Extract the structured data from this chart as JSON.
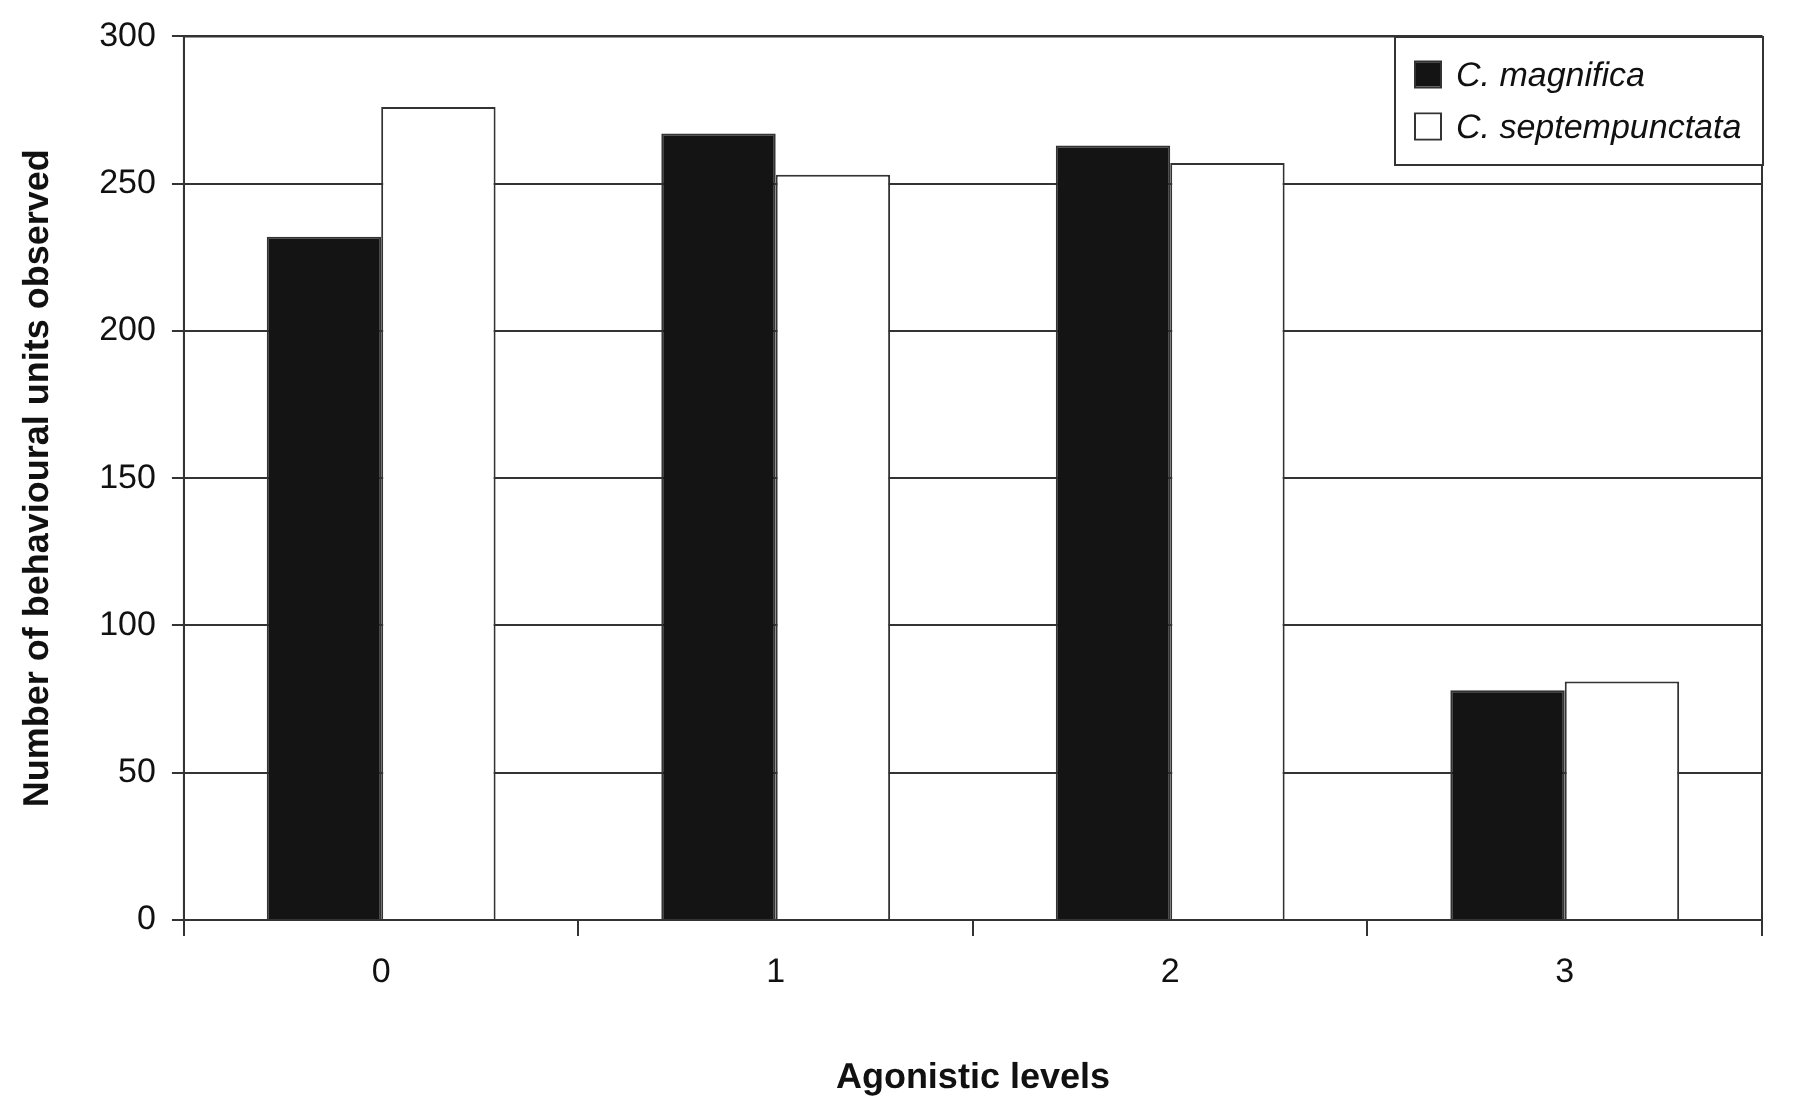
{
  "chart_data": {
    "type": "bar",
    "xlabel": "Agonistic levels",
    "ylabel": "Number of behavioural units observed",
    "categories": [
      "0",
      "1",
      "2",
      "3"
    ],
    "series": [
      {
        "name": "C. magnifica",
        "color": "#141414",
        "values": [
          232,
          267,
          263,
          78
        ]
      },
      {
        "name": "C. septempunctata",
        "color": "#ffffff",
        "values": [
          276,
          253,
          257,
          81
        ]
      }
    ],
    "ylim": [
      0,
      300
    ],
    "yticks": [
      0,
      50,
      100,
      150,
      200,
      250,
      300
    ],
    "grid": "y",
    "legend": "top right"
  }
}
